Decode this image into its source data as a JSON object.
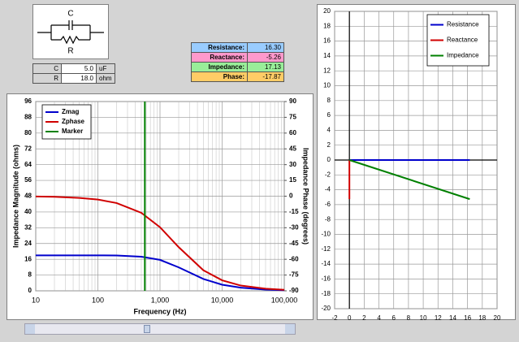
{
  "circuit": {
    "c_label": "C",
    "r_label": "R"
  },
  "params": {
    "rows": [
      [
        "C",
        "5.0",
        "uF"
      ],
      [
        "R",
        "18.0",
        "ohm"
      ]
    ]
  },
  "results": {
    "rows": [
      [
        "Resistance:",
        "16.30"
      ],
      [
        "Reactance:",
        "-5.26"
      ],
      [
        "Impedance:",
        "17.13"
      ],
      [
        "Phase:",
        "-17.87"
      ]
    ]
  },
  "chart_data": [
    {
      "type": "line",
      "x_label": "Frequency (Hz)",
      "y_label": "Impedance Magnitude (ohms)",
      "y2_label": "Impedance Phase (degrees)",
      "xscale": "log",
      "xlim": [
        10,
        100000
      ],
      "xticks": [
        10,
        100,
        {
          "value": 1000,
          "label": "1,000"
        },
        {
          "value": 10000,
          "label": "10,000"
        },
        {
          "value": 100000,
          "label": "100,000"
        }
      ],
      "ylim": [
        0,
        96
      ],
      "yticks": [
        0,
        8,
        16,
        24,
        32,
        40,
        48,
        56,
        64,
        72,
        80,
        88,
        96
      ],
      "y2lim": [
        -90,
        90
      ],
      "y2ticks": [
        -90,
        -75,
        -60,
        -45,
        -30,
        -15,
        0,
        15,
        30,
        45,
        60,
        75,
        90
      ],
      "grid": true,
      "legend": "upper-left",
      "x": [
        10,
        20,
        50,
        100,
        200,
        500,
        1000,
        2000,
        5000,
        10000,
        20000,
        50000,
        100000
      ],
      "series": [
        {
          "name": "Zmag",
          "color": "#0000cc",
          "values": [
            18.0,
            18.0,
            18.0,
            18.0,
            17.9,
            17.3,
            15.7,
            11.9,
            6.0,
            3.1,
            1.6,
            0.6,
            0.3
          ]
        },
        {
          "name": "Zphase",
          "color": "#d00000",
          "axis": "y2",
          "values": [
            -0.3,
            -0.6,
            -1.6,
            -3.2,
            -6.5,
            -15.8,
            -29.5,
            -48.5,
            -70.5,
            -80.0,
            -85.0,
            -88.0,
            -89.0
          ]
        },
        {
          "name": "Marker",
          "color": "#008000",
          "x": [
            570,
            570
          ],
          "values": [
            0,
            96
          ]
        }
      ]
    },
    {
      "type": "line",
      "xlim": [
        -2,
        20
      ],
      "xticks": [
        -2,
        0,
        2,
        4,
        6,
        8,
        10,
        12,
        14,
        16,
        18,
        20
      ],
      "ylim": [
        -20,
        20
      ],
      "yticks": [
        -20,
        -18,
        -16,
        -14,
        -12,
        -10,
        -8,
        -6,
        -4,
        -2,
        0,
        2,
        4,
        6,
        8,
        10,
        12,
        14,
        16,
        18,
        20
      ],
      "grid": true,
      "axes_at_origin": true,
      "legend": "upper-right",
      "series": [
        {
          "name": "Resistance",
          "color": "#0000cc",
          "x": [
            0,
            16.3
          ],
          "values": [
            0,
            0
          ]
        },
        {
          "name": "Reactance",
          "color": "#d00000",
          "x": [
            0,
            0
          ],
          "values": [
            0,
            -5.26
          ]
        },
        {
          "name": "Impedance",
          "color": "#008000",
          "x": [
            0,
            16.3
          ],
          "values": [
            0,
            -5.26
          ]
        }
      ]
    }
  ]
}
